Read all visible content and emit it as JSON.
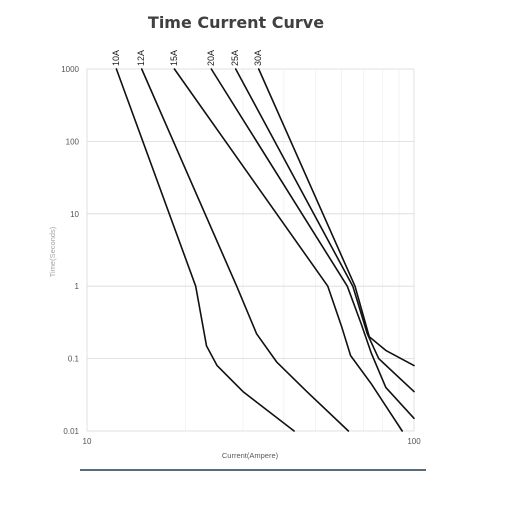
{
  "chart_data": {
    "type": "line",
    "title": "Time Current Curve",
    "xlabel": "Current(Ampere)",
    "ylabel": "Time(Seconds)",
    "x_scale": "log",
    "y_scale": "log",
    "xlim": [
      10,
      100
    ],
    "ylim": [
      0.01,
      1000
    ],
    "x_ticks": [
      "10",
      "100"
    ],
    "y_ticks": [
      "0.01",
      "0.1",
      "1",
      "10",
      "100",
      "1000"
    ],
    "grid": true,
    "series": [
      {
        "name": "10A",
        "points": [
          [
            12.3,
            1000
          ],
          [
            21.5,
            1
          ],
          [
            23.2,
            0.15
          ],
          [
            25,
            0.08
          ],
          [
            30,
            0.035
          ],
          [
            43,
            0.01
          ]
        ]
      },
      {
        "name": "12A",
        "points": [
          [
            14.7,
            1000
          ],
          [
            28.7,
            1
          ],
          [
            33,
            0.22
          ],
          [
            38,
            0.09
          ],
          [
            47,
            0.035
          ],
          [
            63,
            0.01
          ]
        ]
      },
      {
        "name": "15A",
        "points": [
          [
            18.5,
            1000
          ],
          [
            54.5,
            1
          ],
          [
            60,
            0.28
          ],
          [
            64,
            0.11
          ],
          [
            74,
            0.045
          ],
          [
            92,
            0.01
          ]
        ]
      },
      {
        "name": "20A",
        "points": [
          [
            24,
            1000
          ],
          [
            62.5,
            1
          ],
          [
            69,
            0.3
          ],
          [
            74,
            0.12
          ],
          [
            82,
            0.04
          ],
          [
            100,
            0.015
          ]
        ]
      },
      {
        "name": "25A",
        "points": [
          [
            28.5,
            1000
          ],
          [
            65,
            1
          ],
          [
            72,
            0.22
          ],
          [
            78,
            0.1
          ],
          [
            100,
            0.035
          ]
        ]
      },
      {
        "name": "30A",
        "points": [
          [
            33.5,
            1000
          ],
          [
            66,
            1
          ],
          [
            73,
            0.2
          ],
          [
            82,
            0.13
          ],
          [
            100,
            0.08
          ]
        ]
      }
    ]
  }
}
